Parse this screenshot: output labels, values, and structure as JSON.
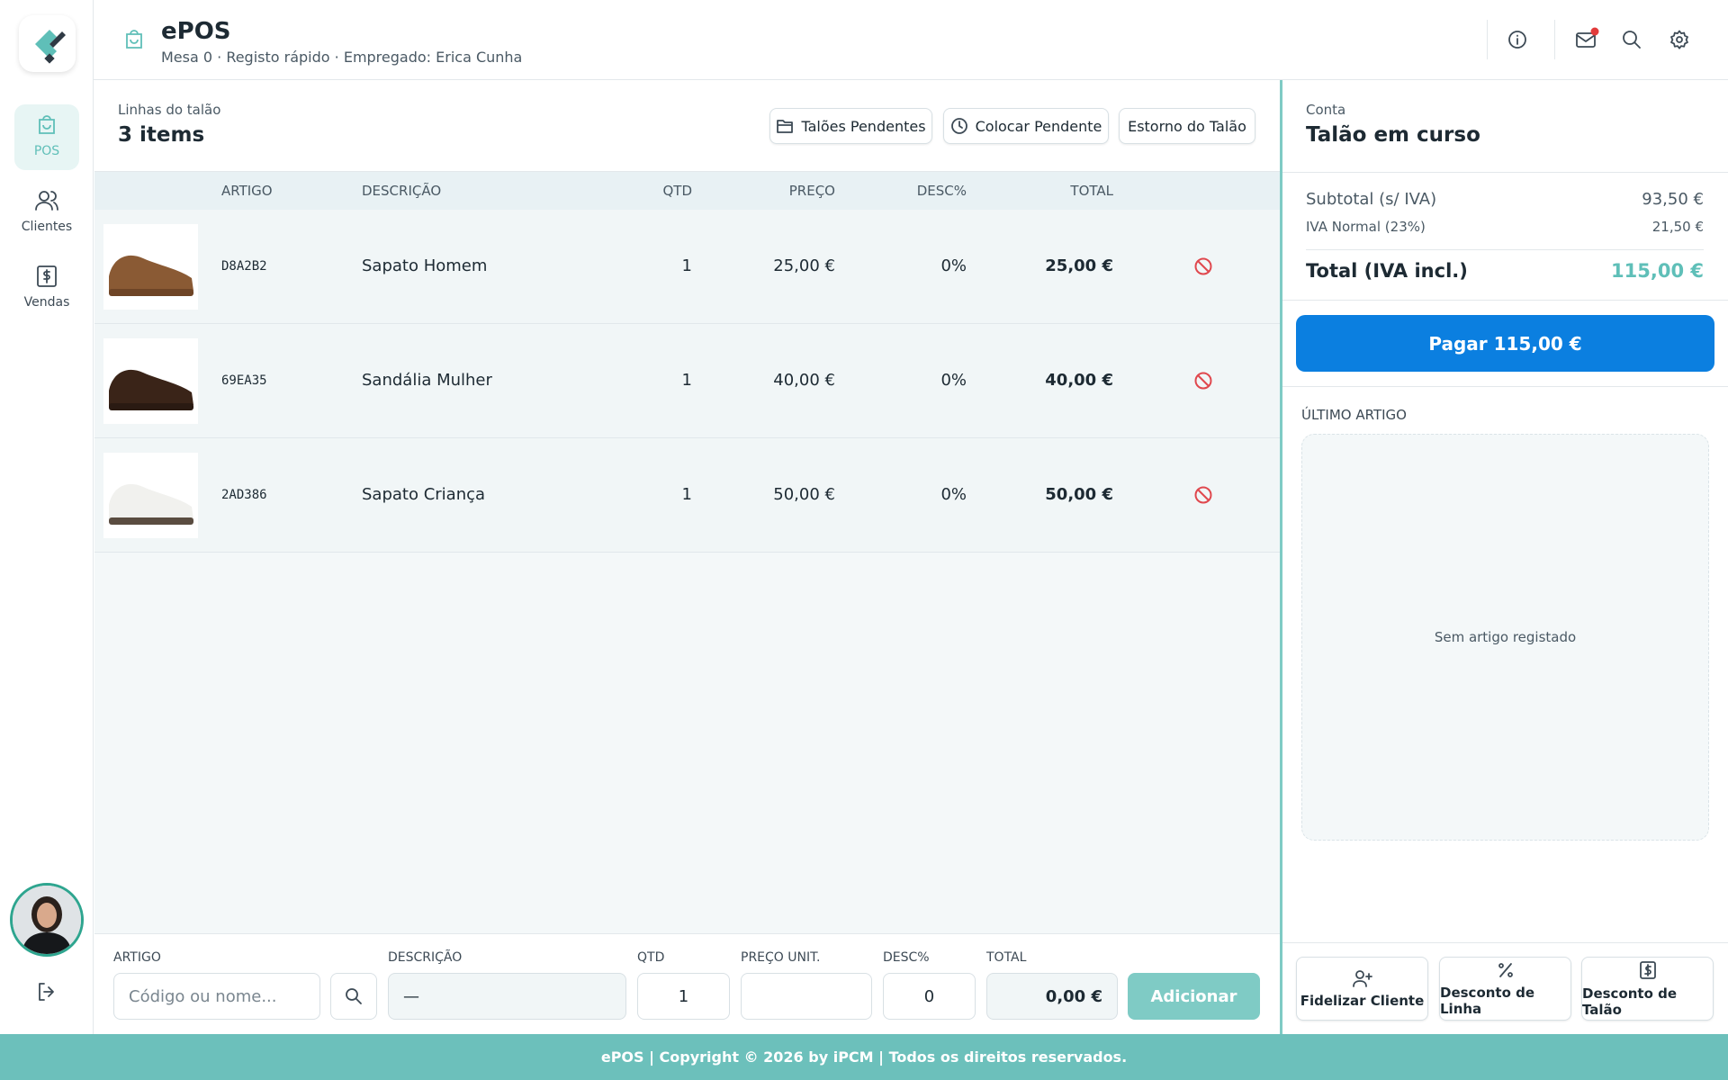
{
  "app": {
    "title": "ePOS",
    "subtitle": "Mesa 0 · Registo rápido · Empregado: Erica Cunha"
  },
  "nav": [
    "POS",
    "Clientes",
    "Vendas"
  ],
  "lines": {
    "label": "Linhas do talão",
    "count": "3 items",
    "buttons": [
      "Talões Pendentes",
      "Colocar Pendente",
      "Estorno do Talão"
    ]
  },
  "table": {
    "columns": [
      "ARTIGO",
      "DESCRIÇÃO",
      "QTD",
      "PREÇO",
      "DESC%",
      "TOTAL"
    ],
    "rows": [
      [
        "D8A2B2",
        "Sapato Homem",
        "1",
        "25,00 €",
        "0%",
        "25,00 €"
      ],
      [
        "69EA35",
        "Sandália Mulher",
        "1",
        "40,00 €",
        "0%",
        "40,00 €"
      ],
      [
        "2AD386",
        "Sapato Criança",
        "1",
        "50,00 €",
        "0%",
        "50,00 €"
      ]
    ]
  },
  "entry": {
    "labels": [
      "ARTIGO",
      "DESCRIÇÃO",
      "QTD",
      "PREÇO UNIT.",
      "DESC%",
      "TOTAL"
    ],
    "placeholder": "Código ou nome...",
    "description": "—",
    "qty": "1",
    "discount": "0",
    "total": "0,00 €",
    "add": "Adicionar"
  },
  "account": {
    "label": "Conta",
    "title": "Talão em curso",
    "subtotal_label": "Subtotal (s/ IVA)",
    "subtotal": "93,50 €",
    "vat_label": "IVA Normal (23%)",
    "vat": "21,50 €",
    "total_label": "Total (IVA incl.)",
    "total": "115,00 €",
    "pay": "Pagar 115,00 €"
  },
  "last_item": {
    "title": "ÚLTIMO ARTIGO",
    "empty": "Sem artigo registado"
  },
  "actions": [
    "Fidelizar Cliente",
    "Desconto de Linha",
    "Desconto de Talão"
  ],
  "footer": "ePOS | Copyright © 2026 by iPCM | Todos os direitos reservados."
}
